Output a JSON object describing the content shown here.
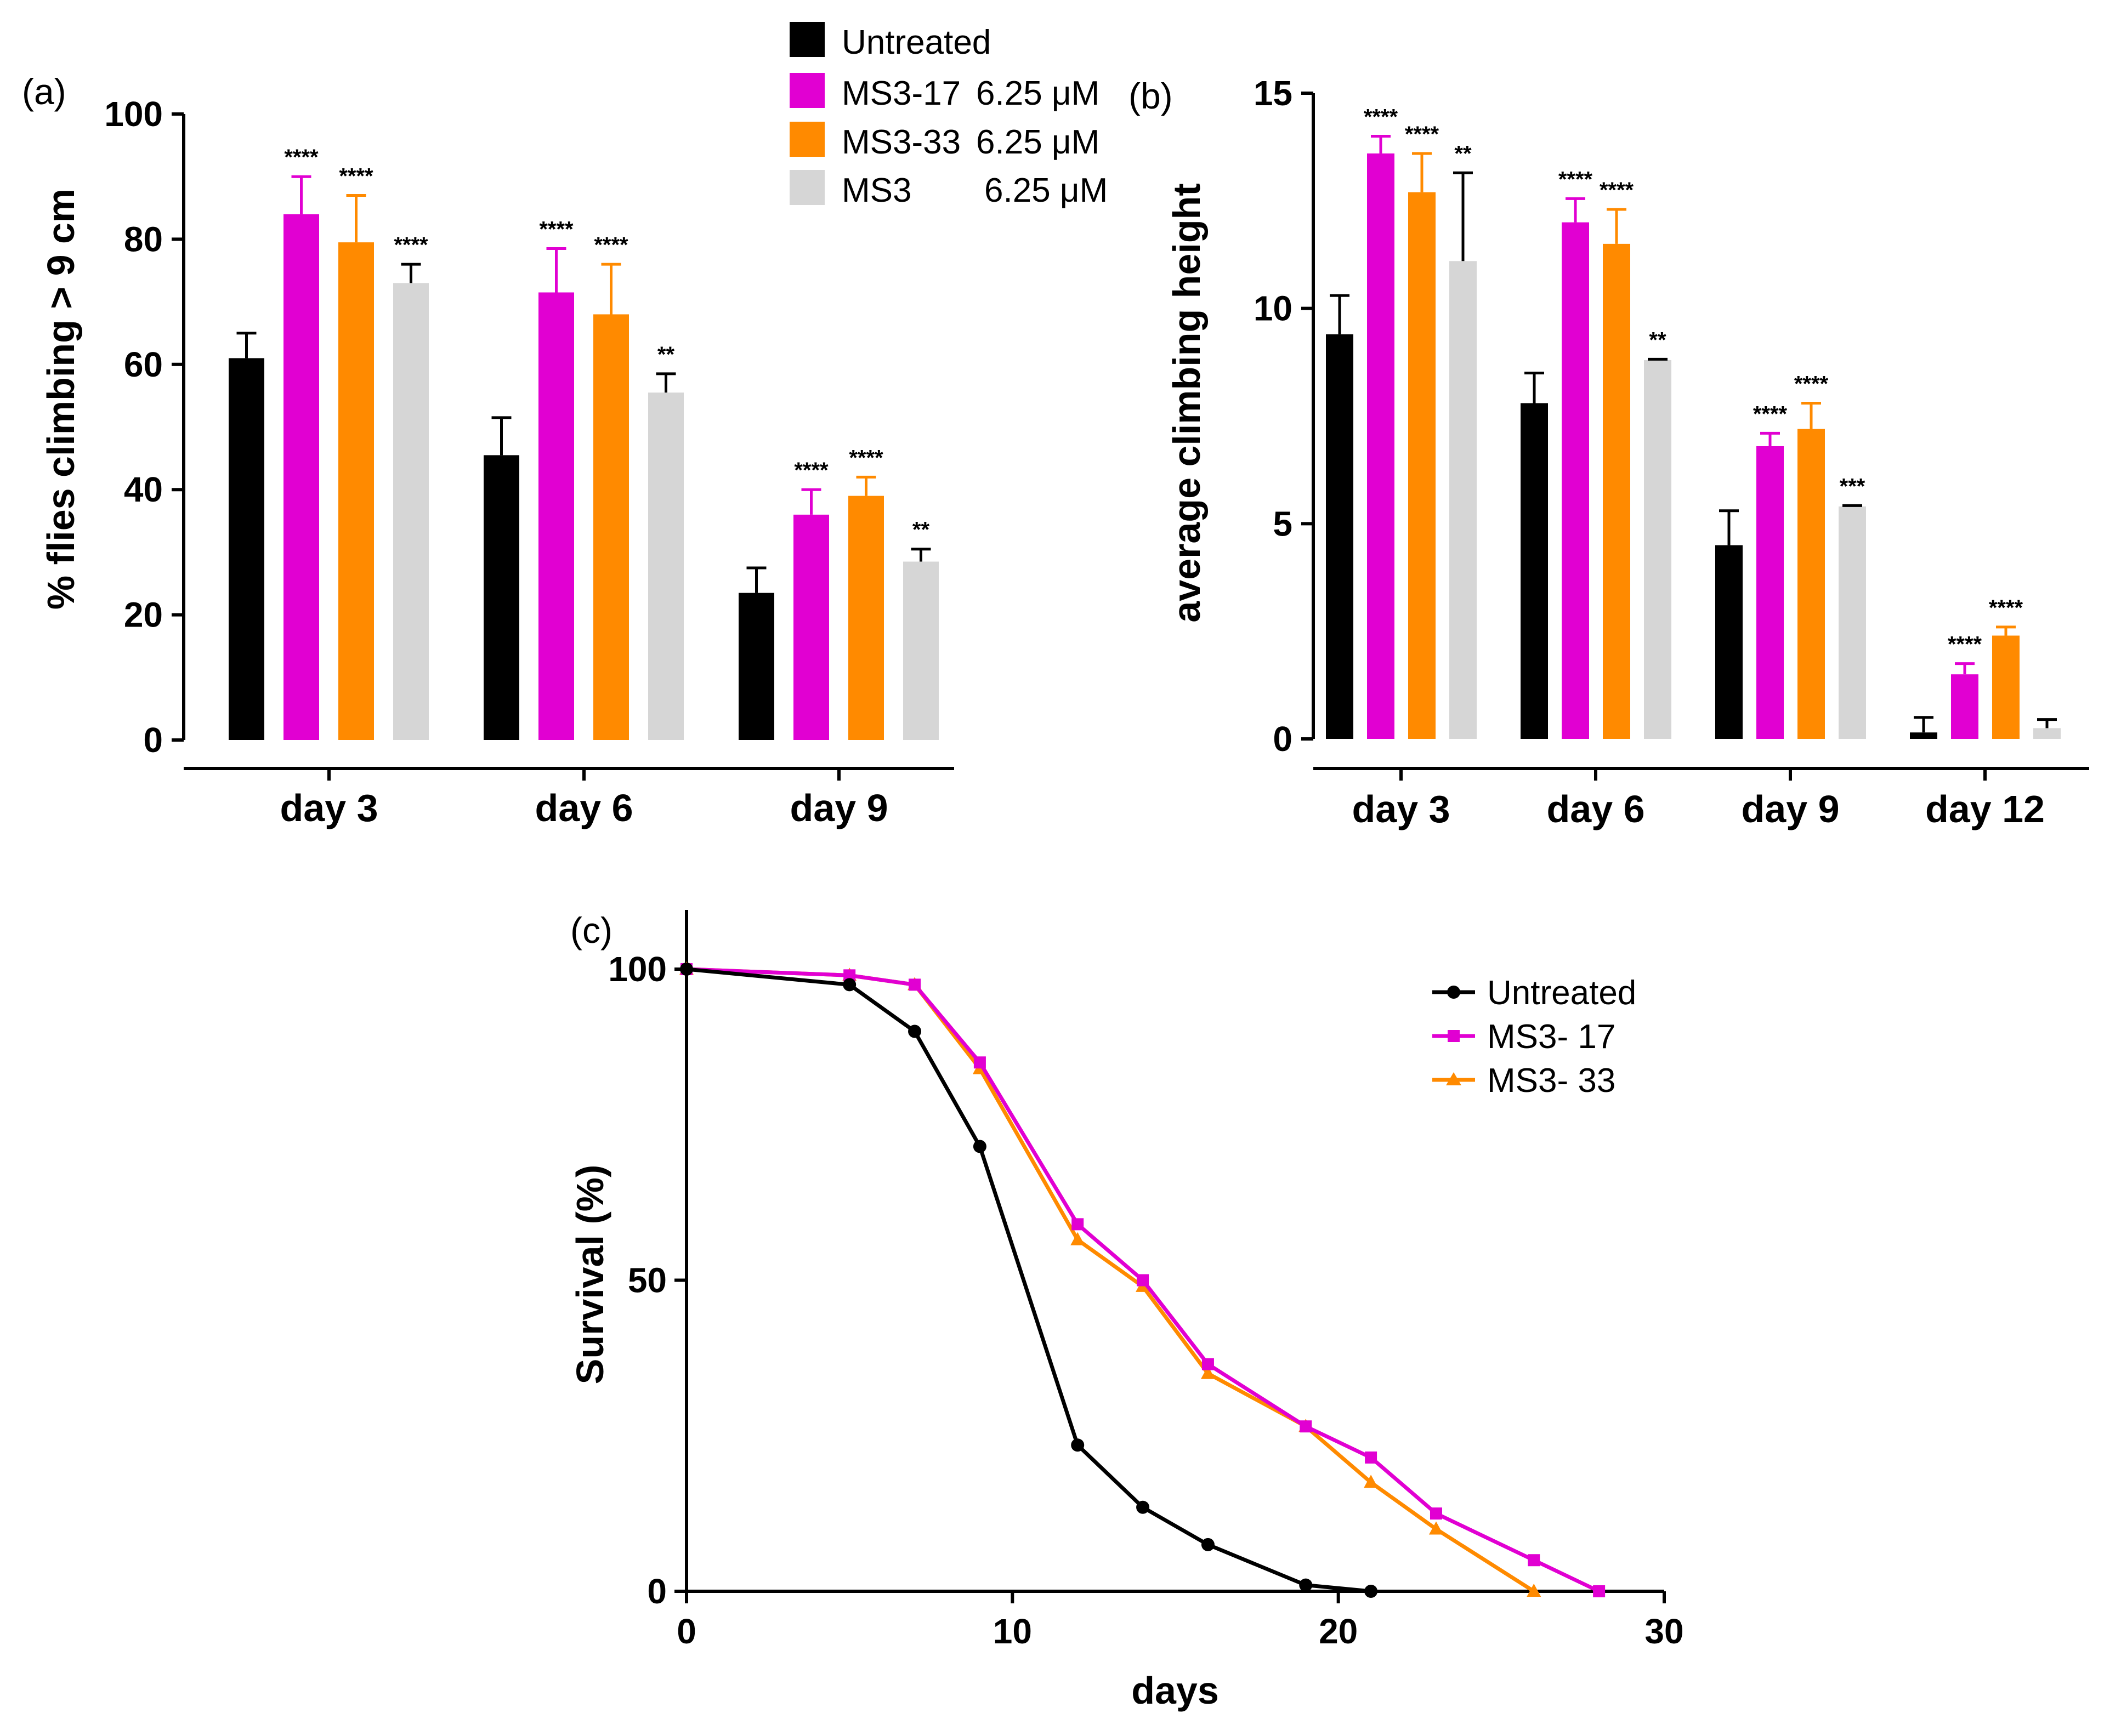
{
  "colors": {
    "untreated": "#000000",
    "ms3_17": "#e100d2",
    "ms3_33": "#ff8a00",
    "ms3": "#d6d6d6"
  },
  "legend_top": [
    {
      "label": "Untreated",
      "conc": "",
      "color_key": "untreated"
    },
    {
      "label": "MS3-17",
      "conc": "6.25 μM",
      "color_key": "ms3_17"
    },
    {
      "label": "MS3-33",
      "conc": "6.25 μM",
      "color_key": "ms3_33"
    },
    {
      "label": "MS3",
      "conc": "6.25 μM",
      "color_key": "ms3"
    }
  ],
  "chart_data": [
    {
      "panel": "(a)",
      "type": "bar",
      "ylabel": "% flies climbing > 9 cm",
      "ylim": [
        0,
        100
      ],
      "yticks": [
        0,
        20,
        40,
        60,
        80,
        100
      ],
      "categories": [
        "day 3",
        "day 6",
        "day 9"
      ],
      "series": [
        {
          "name": "Untreated",
          "color_key": "untreated",
          "values": [
            61,
            45.5,
            23.5
          ],
          "errors": [
            4,
            6,
            4
          ],
          "sig": [
            "",
            "",
            ""
          ]
        },
        {
          "name": "MS3-17 6.25 μM",
          "color_key": "ms3_17",
          "values": [
            84,
            71.5,
            36
          ],
          "errors": [
            6,
            7,
            4
          ],
          "sig": [
            "****",
            "****",
            "****"
          ]
        },
        {
          "name": "MS3-33 6.25 μM",
          "color_key": "ms3_33",
          "values": [
            79.5,
            68,
            39
          ],
          "errors": [
            7.5,
            8,
            3
          ],
          "sig": [
            "****",
            "****",
            "****"
          ]
        },
        {
          "name": "MS3 6.25 μM",
          "color_key": "ms3",
          "values": [
            73,
            55.5,
            28.5
          ],
          "errors": [
            3,
            3,
            2
          ],
          "sig": [
            "****",
            "**",
            "**"
          ]
        }
      ]
    },
    {
      "panel": "(b)",
      "type": "bar",
      "ylabel": "average climbing height",
      "ylim": [
        0,
        15
      ],
      "yticks": [
        0,
        5,
        10,
        15
      ],
      "categories": [
        "day 3",
        "day 6",
        "day 9",
        "day 12"
      ],
      "series": [
        {
          "name": "Untreated",
          "color_key": "untreated",
          "values": [
            9.4,
            7.8,
            4.5,
            0.15
          ],
          "errors": [
            0.9,
            0.7,
            0.8,
            0.35
          ],
          "sig": [
            "",
            "",
            "",
            ""
          ]
        },
        {
          "name": "MS3-17 6.25 μM",
          "color_key": "ms3_17",
          "values": [
            13.6,
            12.0,
            6.8,
            1.5
          ],
          "errors": [
            0.4,
            0.55,
            0.3,
            0.25
          ],
          "sig": [
            "****",
            "****",
            "****",
            "****"
          ]
        },
        {
          "name": "MS3-33 6.25 μM",
          "color_key": "ms3_33",
          "values": [
            12.7,
            11.5,
            7.2,
            2.4
          ],
          "errors": [
            0.9,
            0.8,
            0.6,
            0.2
          ],
          "sig": [
            "****",
            "****",
            "****",
            "****"
          ]
        },
        {
          "name": "MS3 6.25 μM",
          "color_key": "ms3",
          "values": [
            11.1,
            8.8,
            5.4,
            0.25
          ],
          "errors": [
            2.05,
            0.02,
            0.02,
            0.2
          ],
          "sig": [
            "**",
            "**",
            "***",
            ""
          ]
        }
      ]
    },
    {
      "panel": "(c)",
      "type": "line",
      "xlabel": "days",
      "ylabel": "Survival (%)",
      "xlim": [
        0,
        30
      ],
      "ylim": [
        0,
        100
      ],
      "xticks": [
        0,
        10,
        20,
        30
      ],
      "yticks": [
        0,
        50,
        100
      ],
      "series": [
        {
          "name": "Untreated",
          "color_key": "untreated",
          "marker": "circle",
          "x": [
            0,
            5,
            7,
            9,
            12,
            14,
            16,
            19,
            21
          ],
          "y": [
            100,
            97.5,
            90,
            71.5,
            23.5,
            13.5,
            7.5,
            1,
            0
          ]
        },
        {
          "name": "MS3- 17",
          "color_key": "ms3_17",
          "marker": "square",
          "x": [
            0,
            5,
            7,
            9,
            12,
            14,
            16,
            19,
            21,
            23,
            26,
            28
          ],
          "y": [
            100,
            99,
            97.5,
            85,
            59,
            50,
            36.5,
            26.5,
            21.5,
            12.5,
            5,
            0
          ]
        },
        {
          "name": "MS3- 33",
          "color_key": "ms3_33",
          "marker": "triangle",
          "x": [
            0,
            5,
            7,
            9,
            12,
            14,
            16,
            19,
            21,
            23,
            26
          ],
          "y": [
            100,
            99,
            97.5,
            84,
            56.5,
            49,
            35,
            26.5,
            17.5,
            10,
            0
          ]
        }
      ]
    }
  ]
}
